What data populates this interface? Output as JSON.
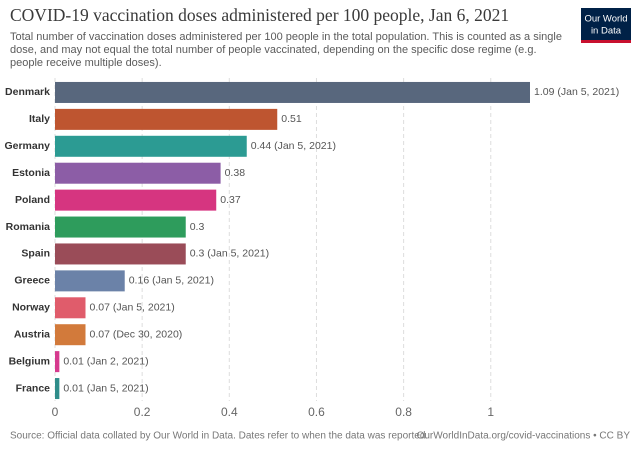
{
  "chart_data": {
    "type": "bar",
    "orientation": "horizontal",
    "title": "COVID-19 vaccination doses administered per 100 people, Jan 6, 2021",
    "subtitle_lines": [
      "Total number of vaccination doses administered per 100 people in the total population. This is counted as a single",
      "dose, and may not equal the total number of people vaccinated, depending on the specific dose regime (e.g.",
      "people receive multiple doses)."
    ],
    "categories": [
      "Denmark",
      "Italy",
      "Germany",
      "Estonia",
      "Poland",
      "Romania",
      "Spain",
      "Greece",
      "Norway",
      "Austria",
      "Belgium",
      "France"
    ],
    "values": [
      1.09,
      0.51,
      0.44,
      0.38,
      0.37,
      0.3,
      0.3,
      0.16,
      0.07,
      0.07,
      0.01,
      0.01
    ],
    "value_labels": [
      "1.09 (Jan 5, 2021)",
      "0.51",
      "0.44 (Jan 5, 2021)",
      "0.38",
      "0.37",
      "0.3",
      "0.3 (Jan 5, 2021)",
      "0.16 (Jan 5, 2021)",
      "0.07 (Jan 5, 2021)",
      "0.07 (Dec 30, 2020)",
      "0.01 (Jan 2, 2021)",
      "0.01 (Jan 5, 2021)"
    ],
    "colors": [
      "#58677d",
      "#be5530",
      "#2c9b93",
      "#8c5da6",
      "#d63580",
      "#2e9c5c",
      "#9a4c58",
      "#6b82a8",
      "#e05c6b",
      "#d27a3b",
      "#d63a8e",
      "#2f8d8a"
    ],
    "xlim": [
      0,
      1.09
    ],
    "xticks": [
      0,
      0.2,
      0.4,
      0.6,
      0.8,
      1
    ],
    "grid": true,
    "source": "Source: Official data collated by Our World in Data. Dates refer to when the data was reported.",
    "url": "OurWorldInData.org/covid-vaccinations • CC BY",
    "logo": [
      "Our World",
      "in Data"
    ]
  }
}
